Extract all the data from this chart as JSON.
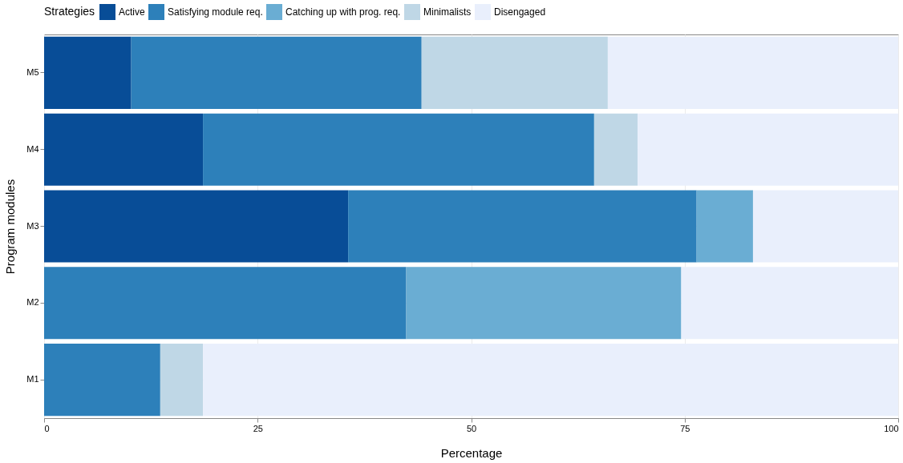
{
  "chart_data": {
    "type": "bar",
    "orientation": "horizontal",
    "stacked": true,
    "xlabel": "Percentage",
    "ylabel": "Program modules",
    "legend_title": "Strategies",
    "categories": [
      "M5",
      "M4",
      "M3",
      "M2",
      "M1"
    ],
    "series": [
      {
        "name": "Active",
        "color": "#084d97",
        "values": [
          10.2,
          18.6,
          35.6,
          null,
          null
        ]
      },
      {
        "name": "Satisfying module req.",
        "color": "#2d80ba",
        "values": [
          34.0,
          45.8,
          40.8,
          42.4,
          13.6
        ]
      },
      {
        "name": "Catching up with prog. req.",
        "color": "#6aadd3",
        "values": [
          null,
          null,
          6.6,
          32.2,
          null
        ]
      },
      {
        "name": "Minimalists",
        "color": "#bfd7e6",
        "values": [
          21.8,
          5.1,
          null,
          null,
          5.0
        ]
      },
      {
        "name": "Disengaged",
        "color": "#e9effc",
        "values": [
          34.0,
          30.5,
          17.0,
          25.4,
          81.4
        ]
      }
    ],
    "xlim": [
      0,
      100
    ],
    "xticks": [
      0,
      25,
      50,
      75,
      100
    ],
    "grid": true,
    "legend": "top"
  }
}
